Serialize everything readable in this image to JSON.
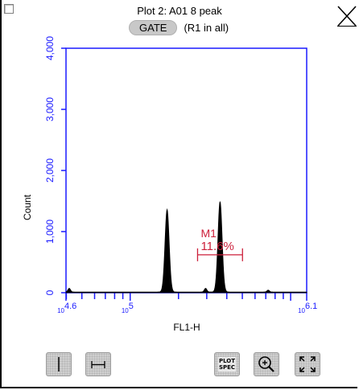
{
  "window": {
    "title": "Plot 2: A01 8 peak",
    "gate_button_label": "GATE",
    "gate_scope": "(R1 in all)",
    "close_icon": "close-x-icon",
    "select_checkbox_icon": "checkbox-icon"
  },
  "colors": {
    "axis": "#1a1aff",
    "histogram": "#000000",
    "marker": "#cc1f3a",
    "button_bg": "#cfcfcf"
  },
  "chart_data": {
    "type": "histogram",
    "title": "",
    "xlabel": "FL1-H",
    "ylabel": "Count",
    "x_scale": "log10",
    "xlim": [
      4.6,
      6.1
    ],
    "ylim": [
      0,
      4000
    ],
    "y_ticks": [
      {
        "value": 0,
        "label": "0"
      },
      {
        "value": 1000,
        "label": "1,000"
      },
      {
        "value": 2000,
        "label": "2,000"
      },
      {
        "value": 3000,
        "label": "3,000"
      },
      {
        "value": 4000,
        "label": "4,000"
      }
    ],
    "x_tick_labels": [
      {
        "exp": 4.6,
        "base": "10",
        "power": "4.6"
      },
      {
        "exp": 5.0,
        "base": "10",
        "power": "5"
      },
      {
        "exp": 6.1,
        "base": "10",
        "power": "6.1"
      }
    ],
    "peaks": [
      {
        "center_exp": 5.23,
        "height": 1350
      },
      {
        "center_exp": 5.56,
        "height": 1480
      }
    ],
    "minor_bumps": [
      {
        "center_exp": 4.62,
        "height": 60
      },
      {
        "center_exp": 5.47,
        "height": 60
      },
      {
        "center_exp": 5.86,
        "height": 30
      }
    ],
    "marker": {
      "name": "M1",
      "percent": "11.6%",
      "range_exp": [
        5.42,
        5.7
      ],
      "level": 620
    }
  },
  "toolbar": {
    "vertical_gate_icon": "vertical-line-gate-icon",
    "horizontal_gate_icon": "range-marker-icon",
    "plot_spec_label": "PLOT\nSPEC",
    "zoom_icon": "zoom-in-icon",
    "fit_icon": "expand-fit-icon"
  }
}
